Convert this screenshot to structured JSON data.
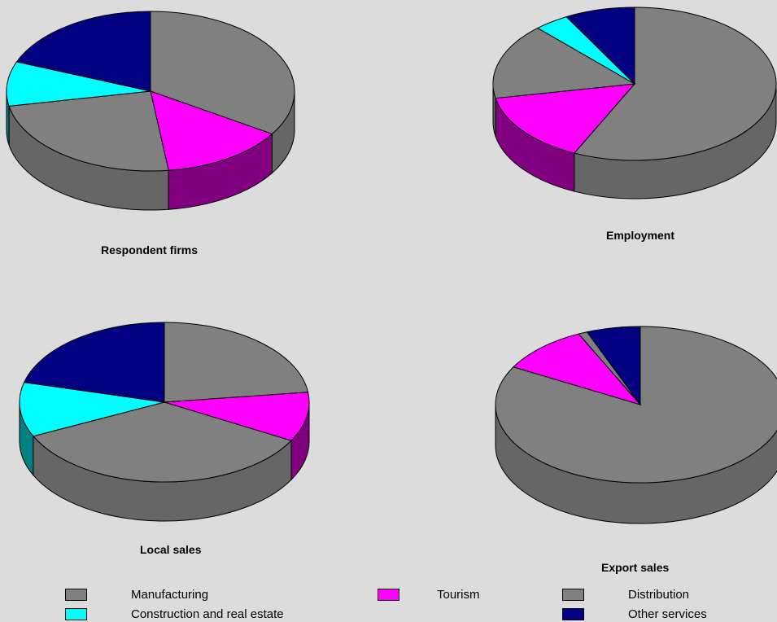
{
  "chart_data": [
    {
      "type": "pie",
      "title": "Respondent firms",
      "categories": [
        "Manufacturing",
        "Tourism",
        "Distribution",
        "Construction and real estate",
        "Other services"
      ],
      "values": [
        34,
        14,
        24,
        9,
        19
      ]
    },
    {
      "type": "pie",
      "title": "Employment",
      "categories": [
        "Manufacturing",
        "Tourism",
        "Distribution",
        "Construction and real estate",
        "Other services"
      ],
      "values": [
        57,
        15,
        16,
        4,
        8
      ]
    },
    {
      "type": "pie",
      "title": "Local sales",
      "categories": [
        "Manufacturing",
        "Tourism",
        "Distribution",
        "Construction and real estate",
        "Other services"
      ],
      "values": [
        23,
        10,
        35,
        11,
        21
      ]
    },
    {
      "type": "pie",
      "title": "Export sales",
      "categories": [
        "Manufacturing",
        "Tourism",
        "Distribution",
        "Construction and real estate",
        "Other services"
      ],
      "values": [
        83,
        10,
        1,
        0,
        6
      ]
    }
  ],
  "legend": [
    {
      "label": "Manufacturing",
      "color": "#808080"
    },
    {
      "label": "Tourism",
      "color": "#ff00ff"
    },
    {
      "label": "Distribution",
      "color": "#808080"
    },
    {
      "label": "Construction and real estate",
      "color": "#00ffff"
    },
    {
      "label": "Other services",
      "color": "#000080"
    }
  ],
  "side_colors": [
    "#666666",
    "#800080",
    "#666666",
    "#008080",
    "#000060"
  ]
}
